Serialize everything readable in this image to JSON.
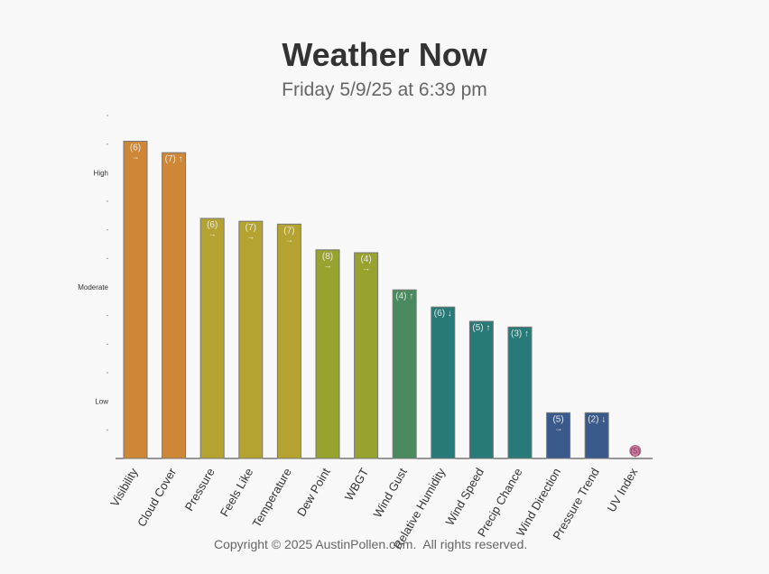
{
  "header": {
    "title": "Weather Now",
    "subtitle": "Friday 5/9/25 at 6:39 pm"
  },
  "footer": {
    "text": "Copyright © 2025 AustinPollen.com.  All rights reserved."
  },
  "chart_data": {
    "type": "bar",
    "title": "Weather Now",
    "subtitle": "Friday 5/9/25 at 6:39 pm",
    "ylim": [
      0,
      12
    ],
    "y_level_labels": [
      {
        "value": 2,
        "label": "Low"
      },
      {
        "value": 6,
        "label": "Moderate"
      },
      {
        "value": 10,
        "label": "High"
      }
    ],
    "categories": [
      "Visibility",
      "Cloud Cover",
      "Pressure",
      "Feels Like",
      "Temperature",
      "Dew Point",
      "WBGT",
      "Wind Gust",
      "Relative Humidity",
      "Wind Speed",
      "Precip Chance",
      "Wind Direction",
      "Pressure Trend",
      "UV Index"
    ],
    "values": [
      11.1,
      10.7,
      8.4,
      8.3,
      8.2,
      7.3,
      7.2,
      5.9,
      5.3,
      4.8,
      4.6,
      1.6,
      1.6,
      0.3
    ],
    "data_labels": [
      "(6)",
      "(7)",
      "(6)",
      "(7)",
      "(7)",
      "(8)",
      "(4)",
      "(4)",
      "(6)",
      "(5)",
      "(3)",
      "(5)",
      "(2)",
      "(5)"
    ],
    "trend_arrows": [
      "→",
      "↑",
      "→",
      "→",
      "→",
      "→",
      "→",
      "↑",
      "↓",
      "↑",
      "↑",
      "→",
      "↓",
      ""
    ],
    "colors": [
      "#cd8736",
      "#cd8736",
      "#b4a231",
      "#b4a231",
      "#b4a231",
      "#98a22f",
      "#98a22f",
      "#4b8a5e",
      "#277a78",
      "#277a78",
      "#277a78",
      "#3a5a8c",
      "#3a5a8c",
      "#c87a9e"
    ]
  }
}
